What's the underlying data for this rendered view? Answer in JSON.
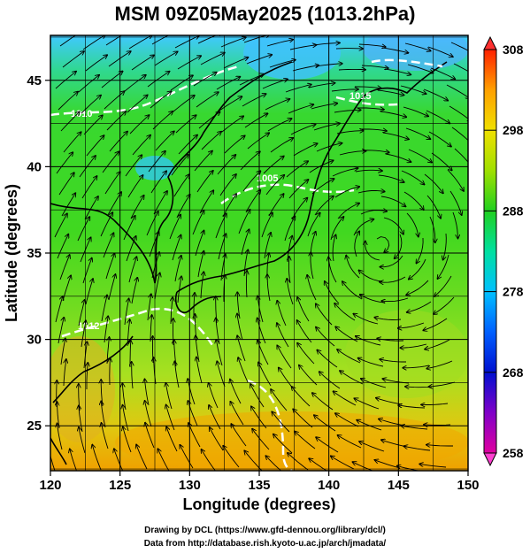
{
  "title": "MSM 09Z05May2025 (1013.2hPa)",
  "map": {
    "xlabel": "Longitude (degrees)",
    "ylabel": "Latitude  (degrees)",
    "lon_range": [
      120,
      150
    ],
    "lat_range": [
      22.4,
      47.6
    ],
    "lon_ticks": [
      120,
      125,
      130,
      135,
      140,
      145,
      150
    ],
    "lat_ticks": [
      25,
      30,
      35,
      40,
      45
    ],
    "grid": true,
    "field": "temperature (K) with streamlines and isobars"
  },
  "colorbar": {
    "min": 258,
    "max": 308,
    "labels": [
      308,
      298,
      288,
      278,
      268,
      258
    ],
    "colors": [
      "#e0007f",
      "#8000c0",
      "#0000d0",
      "#0060ff",
      "#00c0ff",
      "#00e0a0",
      "#20d020",
      "#a0e000",
      "#e0e000",
      "#ffb000",
      "#ff6000",
      "#ff2000"
    ]
  },
  "isobars": {
    "labels": [
      "1010",
      "1005",
      "1012",
      "1015"
    ],
    "color": "#ffffff"
  },
  "footer": {
    "line1": "Drawing by DCL (https://www.gfd-dennou.org/library/dcl/)",
    "line2": "Data from http://database.rish.kyoto-u.ac.jp/arch/jmadata/"
  }
}
